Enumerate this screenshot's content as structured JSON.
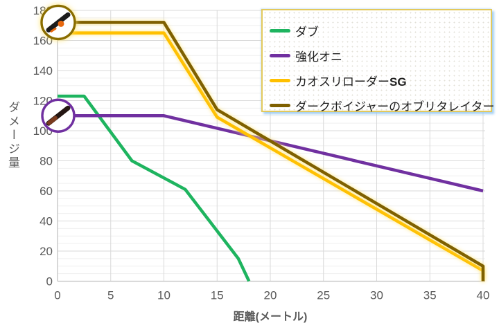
{
  "chart_data": {
    "type": "line",
    "title": "",
    "xlabel": "距離(メートル)",
    "ylabel": "ダメージ量",
    "xlim": [
      0,
      40
    ],
    "ylim": [
      0,
      180
    ],
    "x_ticks": [
      0,
      5,
      10,
      15,
      20,
      25,
      30,
      35,
      40
    ],
    "y_ticks": [
      0,
      20,
      40,
      60,
      80,
      100,
      120,
      140,
      160,
      180
    ],
    "minor_y_step": 5,
    "grid": true,
    "legend_position": "top-right",
    "series": [
      {
        "name": "ダブ",
        "color": "#1eb45f",
        "glow": false,
        "points": [
          [
            0,
            123
          ],
          [
            2.5,
            123
          ],
          [
            7,
            80
          ],
          [
            12,
            61
          ],
          [
            17,
            15
          ],
          [
            18,
            0
          ]
        ]
      },
      {
        "name": "強化オニ",
        "color": "#7030a0",
        "glow": false,
        "points": [
          [
            0,
            110
          ],
          [
            10,
            110
          ],
          [
            40,
            60
          ]
        ]
      },
      {
        "name": "カオスリローダーSG",
        "color": "#ffc000",
        "glow": true,
        "points": [
          [
            0,
            165
          ],
          [
            10,
            165
          ],
          [
            15,
            109
          ],
          [
            40,
            7
          ],
          [
            40,
            0
          ]
        ]
      },
      {
        "name": "ダークボイジャーのオブリタレイター",
        "color": "#7f6000",
        "glow": true,
        "points": [
          [
            0,
            172
          ],
          [
            10,
            172
          ],
          [
            15,
            114
          ],
          [
            40,
            10
          ],
          [
            40,
            0
          ]
        ]
      }
    ],
    "markers": [
      {
        "series": "ダークボイジャーのオブリタレイター",
        "at": [
          0,
          172
        ],
        "radius": 24,
        "ring_color": "#8a6d00",
        "glow": true,
        "icon": "weapon-shotgun-icon",
        "icon_body_color": "#1c1c1c",
        "icon_accent_color": "#e8680f"
      },
      {
        "series": "強化オニ",
        "at": [
          0,
          110
        ],
        "radius": 23,
        "ring_color": "#7030a0",
        "glow": false,
        "icon": "weapon-rifle-icon",
        "icon_body_color": "#241612",
        "icon_accent_color": "#7a3b1e"
      }
    ]
  },
  "legend": {
    "border_color": "#e3c95c",
    "shadow_color": "#96c8f0",
    "items": [
      {
        "label": "ダブ",
        "label_bold": "",
        "color": "#1eb45f"
      },
      {
        "label": "強化オニ",
        "label_bold": "",
        "color": "#7030a0"
      },
      {
        "label": "カオスリローダー",
        "label_bold": "SG",
        "color": "#ffc000"
      },
      {
        "label": "ダークボイジャーのオブリタレイター",
        "label_bold": "",
        "color": "#7f6000"
      }
    ]
  },
  "axis_style": {
    "tick_color": "#595959",
    "major_grid_color": "#d9d9d9",
    "minor_grid_color": "#efefef",
    "axis_line_color": "#bfbfbf"
  }
}
